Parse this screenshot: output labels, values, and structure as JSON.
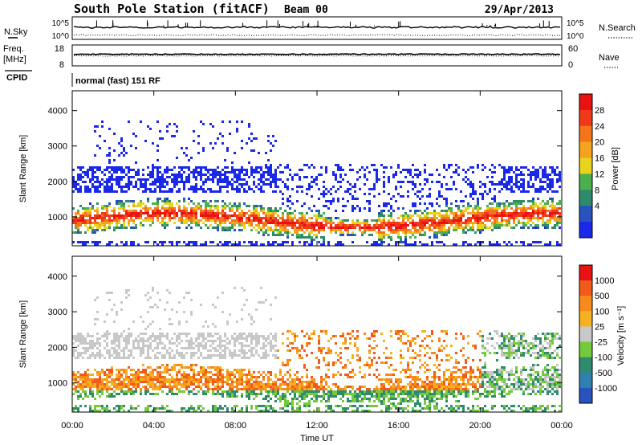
{
  "header": {
    "station": "South Pole Station (fitACF)",
    "beam": "Beam 00",
    "date": "29/Apr/2013"
  },
  "params": {
    "nsky": {
      "label": "N.Sky",
      "ticks": [
        "10^5",
        "10^0"
      ]
    },
    "nsearch": {
      "label": "N.Search",
      "ticks": [
        "10^5",
        "10^0"
      ]
    },
    "freq": {
      "label_line1": "Freq.",
      "label_line2": "[MHz]",
      "ticks": [
        "18",
        "8"
      ]
    },
    "nave": {
      "label": "Nave",
      "ticks": [
        "60",
        "0"
      ]
    },
    "cpid": {
      "label": "CPID",
      "value": "normal (fast) 151 RF"
    }
  },
  "chart_data": [
    {
      "type": "heatmap",
      "name": "power-panel",
      "ylabel": "Slant Range [km]",
      "yticks": [
        "4000",
        "3000",
        "2000",
        "1000"
      ],
      "ylim": [
        180,
        4560
      ],
      "xlim": [
        0,
        24
      ],
      "colorbar": {
        "label": "Power [dB]",
        "ticks": [
          "28",
          "24",
          "20",
          "16",
          "12",
          "8",
          "4"
        ],
        "colors": [
          "#1a28e8",
          "#2a52bd",
          "#2d8a6a",
          "#4bb04b",
          "#e8d31e",
          "#f5a31e",
          "#f4741c",
          "#ef3a1a",
          "#e81212"
        ]
      }
    },
    {
      "type": "heatmap",
      "name": "velocity-panel",
      "ylabel": "Slant Range [km]",
      "yticks": [
        "4000",
        "3000",
        "2000",
        "1000"
      ],
      "ylim": [
        180,
        4560
      ],
      "xlim": [
        0,
        24
      ],
      "colorbar": {
        "label": "Velocity [m s⁻¹]",
        "ticks": [
          "1000",
          "500",
          "100",
          "25",
          "-25",
          "-100",
          "-500",
          "-1000"
        ],
        "colors": [
          "#2a52bd",
          "#2f7fb0",
          "#2e8b6c",
          "#74c93c",
          "#c8c8c8",
          "#f5b121",
          "#f78a1c",
          "#f05a1a",
          "#e81212"
        ]
      }
    }
  ],
  "xaxis": {
    "ticks": [
      "00:00",
      "04:00",
      "08:00",
      "12:00",
      "16:00",
      "20:00",
      "00:00"
    ],
    "label": "Time UT"
  }
}
